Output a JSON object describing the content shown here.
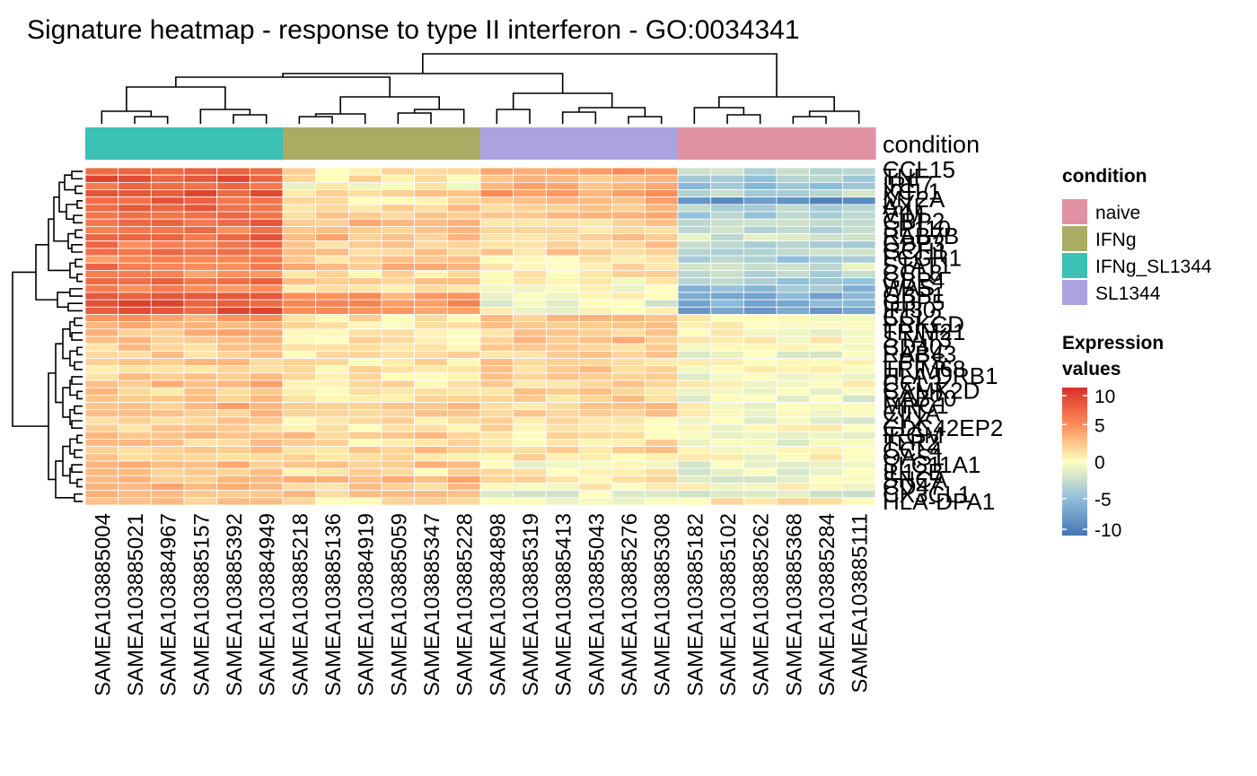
{
  "chart_data": {
    "type": "heatmap",
    "title": "Signature heatmap - response to type II interferon - GO:0034341",
    "annotation_title": "condition",
    "legend": {
      "condition_title": "condition",
      "condition_levels": [
        {
          "name": "naive",
          "color": "#e092a3"
        },
        {
          "name": "IFNg",
          "color": "#abac64"
        },
        {
          "name": "IFNg_SL1344",
          "color": "#3cbfb4"
        },
        {
          "name": "SL1344",
          "color": "#aba3e0"
        }
      ],
      "expression_title_line1": "Expression",
      "expression_title_line2": "values",
      "scale_ticks": [
        "10",
        "5",
        "0",
        "-5",
        "-10"
      ],
      "scale_range": [
        -10,
        10
      ],
      "scale_colors": [
        "#4575b4",
        "#91bfdb",
        "#fffebe",
        "#fc8d59",
        "#d73027"
      ]
    },
    "samples": [
      "SAMEA103885004",
      "SAMEA103885021",
      "SAMEA103884967",
      "SAMEA103885157",
      "SAMEA103885392",
      "SAMEA103884949",
      "SAMEA103885218",
      "SAMEA103885136",
      "SAMEA103884919",
      "SAMEA103885059",
      "SAMEA103885347",
      "SAMEA103885228",
      "SAMEA103884898",
      "SAMEA103885319",
      "SAMEA103885413",
      "SAMEA103885043",
      "SAMEA103885276",
      "SAMEA103885308",
      "SAMEA103885182",
      "SAMEA103885102",
      "SAMEA103885262",
      "SAMEA103885368",
      "SAMEA103885284",
      "SAMEA103885111"
    ],
    "sample_condition": [
      "IFNg_SL1344",
      "IFNg_SL1344",
      "IFNg_SL1344",
      "IFNg_SL1344",
      "IFNg_SL1344",
      "IFNg_SL1344",
      "IFNg",
      "IFNg",
      "IFNg",
      "IFNg",
      "IFNg",
      "IFNg",
      "SL1344",
      "SL1344",
      "SL1344",
      "SL1344",
      "SL1344",
      "SL1344",
      "naive",
      "naive",
      "naive",
      "naive",
      "naive",
      "naive"
    ],
    "row_labels": [
      "CCL15",
      "TNF",
      "IRF7",
      "XCL1",
      "MT2A",
      "AXL",
      "VIM",
      "GBP2",
      "SP110",
      "RAB7B",
      "GBP3",
      "GCH1",
      "FCGR1",
      "STAT1",
      "CCL8",
      "GBP4",
      "WAS",
      "GBP1",
      "GBP5",
      "IFI30",
      "CCL2",
      "PRKCD",
      "TRIM21",
      "STAT3",
      "CD40",
      "RAB43",
      "EPRS",
      "TRIM68",
      "HLA-DRB1",
      "CCL3",
      "CAMK2D",
      "RAB20",
      "MRC1",
      "CIITA",
      "ZYX",
      "CDC42EP2",
      "IRGM",
      "TLR2",
      "CCL4",
      "OAS1",
      "SLC11A1",
      "IL12B",
      "SNCA",
      "CD47",
      "CX3CL1",
      "HLA-DPA1"
    ],
    "row_label_font_px": 26,
    "matrix_rows": 46,
    "matrix_cols": 24,
    "group_means": {
      "IFNg_SL1344": [
        8,
        8,
        7,
        8,
        7,
        7,
        6,
        7,
        6,
        7,
        6,
        6,
        5,
        6,
        5,
        7,
        5,
        8,
        8,
        8,
        4,
        3,
        3,
        3,
        2,
        2,
        2,
        2,
        2,
        3,
        2,
        2,
        3,
        3,
        2,
        2,
        2,
        2,
        2,
        2,
        3,
        2,
        3,
        4,
        3,
        2
      ],
      "IFNg": [
        1,
        1,
        0,
        2,
        1,
        2,
        2,
        3,
        2,
        3,
        2,
        2,
        2,
        3,
        1,
        2,
        1,
        4,
        5,
        4,
        1,
        1,
        1,
        1,
        1,
        1,
        1,
        1,
        1,
        1,
        1,
        1,
        2,
        2,
        1,
        1,
        2,
        1,
        2,
        1,
        3,
        1,
        3,
        2,
        2,
        1
      ],
      "SL1344": [
        4,
        3,
        3,
        4,
        3,
        2,
        3,
        2,
        2,
        2,
        2,
        2,
        1,
        1,
        1,
        0,
        0,
        0,
        -1,
        0,
        3,
        2,
        2,
        3,
        2,
        2,
        2,
        2,
        2,
        2,
        2,
        2,
        2,
        2,
        1,
        1,
        1,
        1,
        2,
        1,
        0,
        1,
        1,
        0,
        -1,
        0
      ],
      "naive": [
        -3,
        -4,
        -5,
        -3,
        -8,
        -3,
        -4,
        -2,
        -3,
        -2,
        -3,
        -3,
        -4,
        -2,
        -3,
        -4,
        -5,
        -6,
        -6,
        -7,
        0,
        0,
        0,
        0,
        0,
        -1,
        0,
        0,
        -1,
        0,
        -1,
        -1,
        0,
        0,
        -1,
        0,
        0,
        -1,
        0,
        0,
        -1,
        -1,
        -1,
        0,
        -2,
        1
      ]
    }
  }
}
